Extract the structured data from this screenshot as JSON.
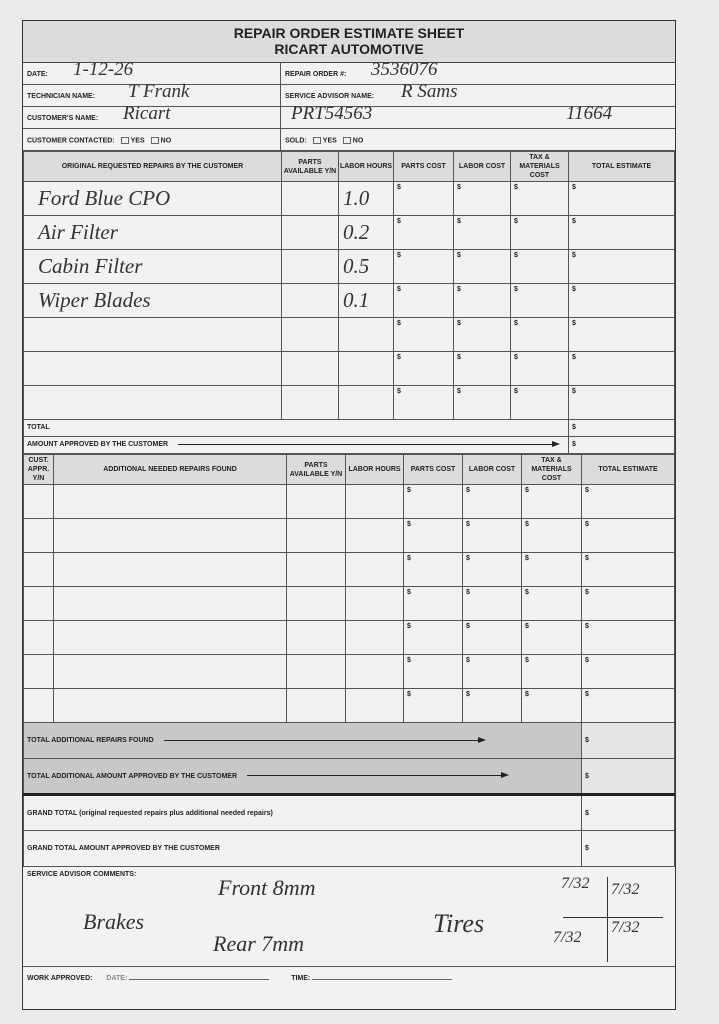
{
  "title": "REPAIR ORDER ESTIMATE SHEET",
  "subtitle": "RICART AUTOMOTIVE",
  "info": {
    "date_label": "DATE:",
    "date": "1-12-26",
    "repair_order_label": "REPAIR ORDER #:",
    "repair_order": "3536076",
    "technician_label": "TECHNICIAN NAME:",
    "technician": "T Frank",
    "advisor_label": "SERVICE ADVISOR NAME:",
    "advisor": "R Sams",
    "customer_label": "CUSTOMER'S NAME:",
    "customer": "Ricart",
    "vehicle_note": "PRT54563",
    "mileage_note": "11664",
    "contacted_label": "CUSTOMER CONTACTED:",
    "sold_label": "SOLD:",
    "yes": "YES",
    "no": "NO"
  },
  "table1": {
    "headers": [
      "ORIGINAL REQUESTED REPAIRS BY THE CUSTOMER",
      "PARTS AVAILABLE Y/N",
      "LABOR HOURS",
      "PARTS COST",
      "LABOR COST",
      "TAX & MATERIALS COST",
      "TOTAL ESTIMATE"
    ],
    "rows": [
      {
        "repair": "Ford Blue CPO",
        "hours": "1.0"
      },
      {
        "repair": "Air Filter",
        "hours": "0.2"
      },
      {
        "repair": "Cabin Filter",
        "hours": "0.5"
      },
      {
        "repair": "Wiper Blades",
        "hours": "0.1"
      },
      {
        "repair": "",
        "hours": ""
      },
      {
        "repair": "",
        "hours": ""
      },
      {
        "repair": "",
        "hours": ""
      }
    ],
    "currency": "$",
    "total_label": "TOTAL",
    "approved_label": "AMOUNT APPROVED BY THE CUSTOMER"
  },
  "table2": {
    "headers": [
      "CUST. APPR. Y/N",
      "ADDITIONAL NEEDED REPAIRS FOUND",
      "PARTS AVAILABLE Y/N",
      "LABOR HOURS",
      "PARTS COST",
      "LABOR COST",
      "TAX & MATERIALS COST",
      "TOTAL ESTIMATE"
    ],
    "total_additional_label": "TOTAL ADDITIONAL REPAIRS FOUND",
    "total_additional_approved_label": "TOTAL ADDITIONAL AMOUNT APPROVED BY THE CUSTOMER",
    "grand_total_label": "GRAND TOTAL (original requested repairs plus additional needed repairs)",
    "grand_total_approved_label": "GRAND TOTAL AMOUNT APPROVED BY THE CUSTOMER"
  },
  "comments": {
    "label": "SERVICE ADVISOR COMMENTS:",
    "brakes": "Brakes",
    "front": "Front 8mm",
    "rear": "Rear 7mm",
    "tires": "Tires",
    "tire_lf": "7/32",
    "tire_rf": "7/32",
    "tire_lr": "7/32",
    "tire_rr": "7/32"
  },
  "work": {
    "label": "WORK APPROVED:",
    "date_label": "DATE:",
    "time_label": "TIME:"
  }
}
